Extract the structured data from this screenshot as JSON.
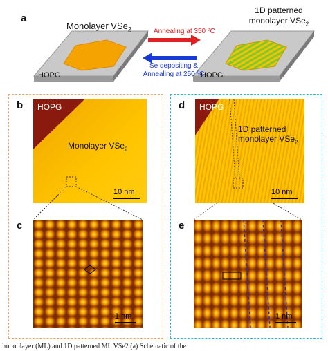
{
  "panels": {
    "a": {
      "letter": "a",
      "left_title": "Monolayer VSe",
      "left_title_sub": "2",
      "right_title_line1": "1D patterned",
      "right_title_line2": "monolayer VSe",
      "right_title_sub": "2",
      "substrate_left": "HOPG",
      "substrate_right": "HOPG",
      "arrow_top_label": "Annealing at 350 ºC",
      "arrow_bottom_line1": "Se depositing &",
      "arrow_bottom_line2": "Annealing at 250 ºC"
    },
    "b": {
      "letter": "b",
      "hopg": "HOPG",
      "region_label": "Monolayer VSe",
      "region_label_sub": "2",
      "scale": "10 nm"
    },
    "c": {
      "letter": "c",
      "scale": "1 nm"
    },
    "d": {
      "letter": "d",
      "hopg": "HOPG",
      "region_line1": "1D patterned",
      "region_line2": "monolayer VSe",
      "region_sub": "2",
      "scale": "10 nm"
    },
    "e": {
      "letter": "e",
      "scale": "1 nm"
    }
  },
  "caption": "f monolayer (ML) and 1D patterned ML VSe2 (a) Schematic of the",
  "colors": {
    "orange_frame": "#f4a261",
    "blue_frame": "#29b6e6",
    "red_arrow": "#e02020",
    "blue_arrow": "#1a3ad6",
    "hopg_dark": "#8b1a0e",
    "ml_yellow": "#ffc400",
    "hex_orange": "#f5a300",
    "stripe_green": "#7ec832"
  }
}
